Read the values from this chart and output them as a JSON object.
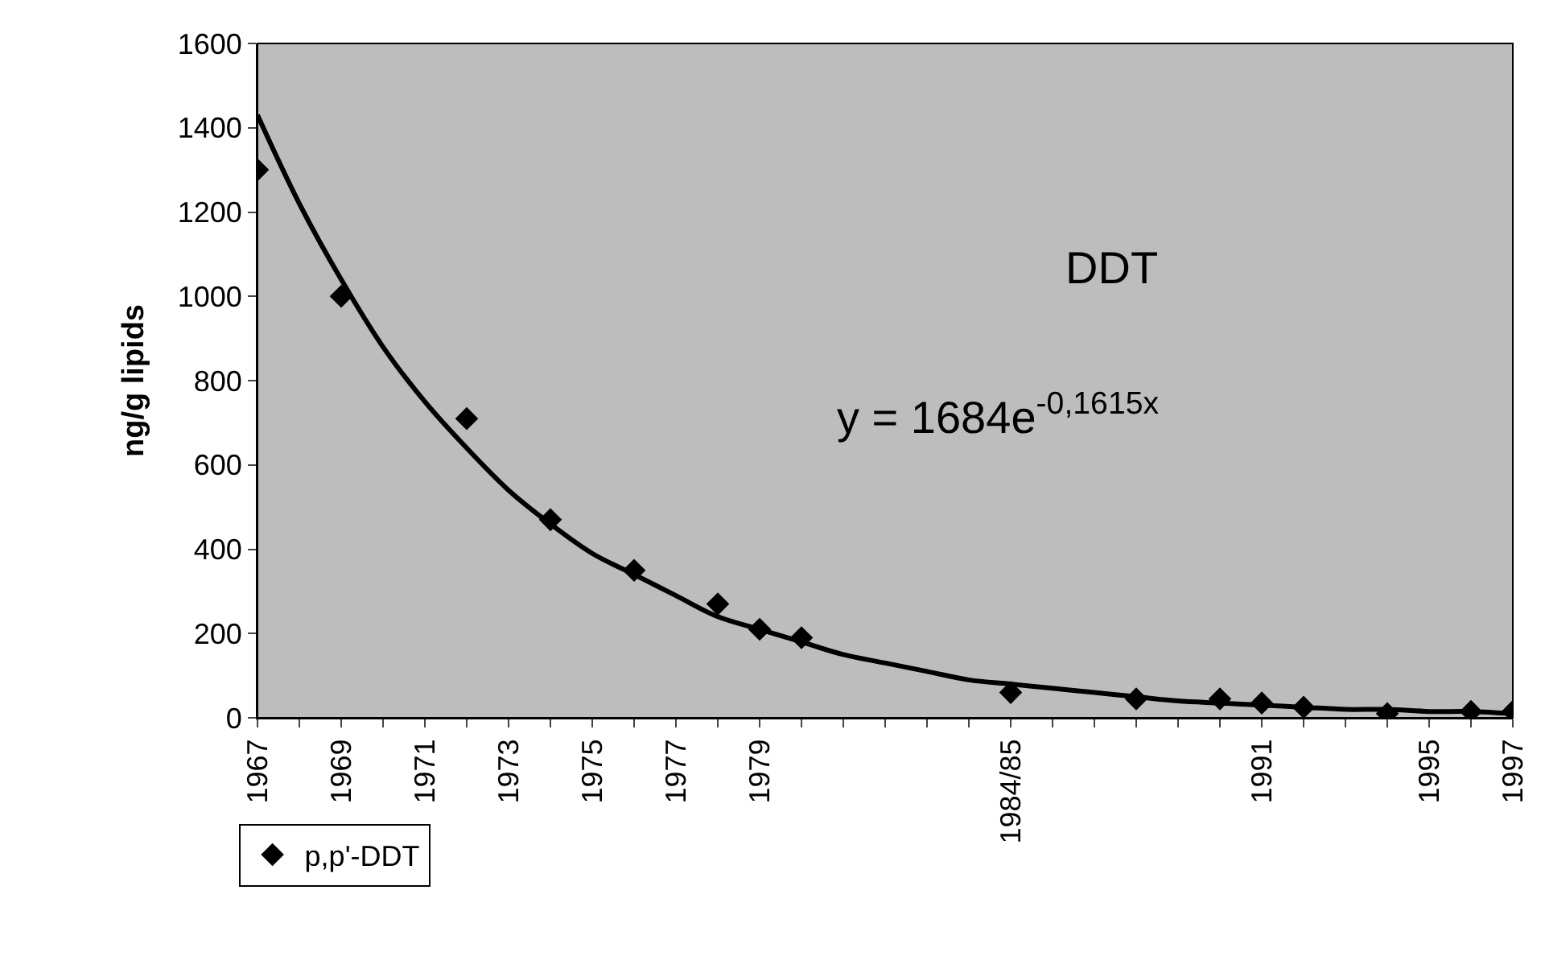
{
  "chart_data": {
    "type": "scatter",
    "ylabel": "ng/g lipids",
    "categories": [
      "1967",
      null,
      "1969",
      null,
      "1971",
      null,
      "1973",
      null,
      "1975",
      null,
      "1977",
      null,
      "1979",
      null,
      null,
      null,
      null,
      null,
      "1984/85",
      null,
      null,
      null,
      null,
      null,
      "1991",
      null,
      null,
      null,
      "1995",
      null,
      "1997"
    ],
    "series": [
      {
        "name": "p,p'-DDT",
        "color": "#000000",
        "marker": "diamond",
        "values": [
          1300,
          null,
          1000,
          null,
          null,
          710,
          null,
          470,
          null,
          350,
          null,
          270,
          210,
          190,
          null,
          null,
          null,
          null,
          60,
          null,
          null,
          45,
          null,
          45,
          35,
          25,
          null,
          10,
          null,
          15,
          15
        ]
      },
      {
        "type": "line",
        "color": "#000000",
        "values": [
          1430,
          1220,
          1040,
          880,
          750,
          640,
          540,
          460,
          390,
          340,
          290,
          240,
          210,
          180,
          150,
          130,
          110,
          90,
          80,
          70,
          60,
          50,
          40,
          35,
          30,
          25,
          20,
          20,
          15,
          15,
          10
        ]
      }
    ],
    "ylim": [
      0,
      1600
    ],
    "yticks": [
      0,
      200,
      400,
      600,
      800,
      1000,
      1200,
      1400,
      1600
    ],
    "grid": false,
    "legend": "bottom left",
    "annotations": [
      {
        "text": "DDT"
      },
      {
        "text": "y = 1684e$^{-0,1615x}$"
      }
    ]
  }
}
